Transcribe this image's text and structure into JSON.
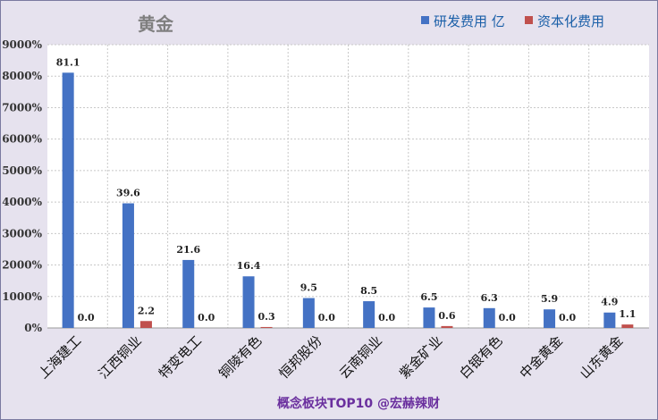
{
  "chart_data": {
    "type": "bar",
    "title": "黄金",
    "categories": [
      "上海建工",
      "江西铜业",
      "特变电工",
      "铜陵有色",
      "恒邦股份",
      "云南铜业",
      "紫金矿业",
      "白银有色",
      "中金黄金",
      "山东黄金"
    ],
    "series": [
      {
        "name": "研发费用 亿",
        "color": "#4472c4",
        "values": [
          81.1,
          39.6,
          21.6,
          16.4,
          9.5,
          8.5,
          6.5,
          6.3,
          5.9,
          4.9
        ]
      },
      {
        "name": "资本化费用",
        "color": "#c0504d",
        "values": [
          0.0,
          2.2,
          0.0,
          0.3,
          0.0,
          0.0,
          0.6,
          0.0,
          0.0,
          1.1
        ]
      }
    ],
    "y_tick_labels": [
      "0%",
      "1000%",
      "2000%",
      "3000%",
      "4000%",
      "5000%",
      "6000%",
      "7000%",
      "8000%",
      "9000%"
    ],
    "ylim": [
      0,
      90
    ],
    "grid": true,
    "legend_position": "top-right",
    "footer": "概念板块TOP10 @宏赫辣财"
  }
}
